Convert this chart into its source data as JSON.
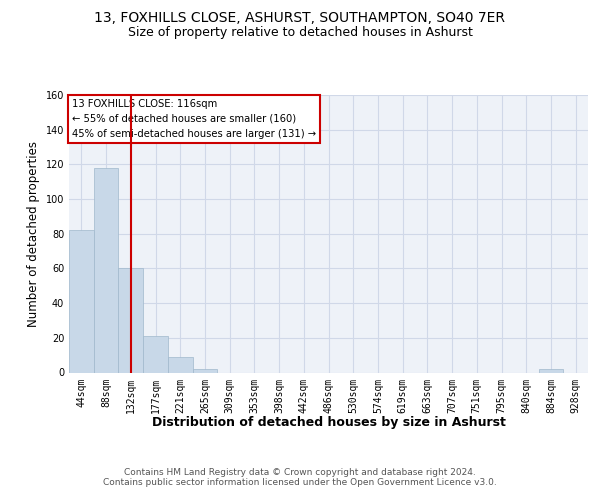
{
  "title1": "13, FOXHILLS CLOSE, ASHURST, SOUTHAMPTON, SO40 7ER",
  "title2": "Size of property relative to detached houses in Ashurst",
  "xlabel": "Distribution of detached houses by size in Ashurst",
  "ylabel": "Number of detached properties",
  "categories": [
    "44sqm",
    "88sqm",
    "132sqm",
    "177sqm",
    "221sqm",
    "265sqm",
    "309sqm",
    "353sqm",
    "398sqm",
    "442sqm",
    "486sqm",
    "530sqm",
    "574sqm",
    "619sqm",
    "663sqm",
    "707sqm",
    "751sqm",
    "795sqm",
    "840sqm",
    "884sqm",
    "928sqm"
  ],
  "values": [
    82,
    118,
    60,
    21,
    9,
    2,
    0,
    0,
    0,
    0,
    0,
    0,
    0,
    0,
    0,
    0,
    0,
    0,
    0,
    2,
    0
  ],
  "bar_color": "#c8d8e8",
  "bar_edgecolor": "#a0b8cc",
  "grid_color": "#d0d8e8",
  "background_color": "#eef2f8",
  "vline_x": 2,
  "vline_color": "#cc0000",
  "annotation_text": "13 FOXHILLS CLOSE: 116sqm\n← 55% of detached houses are smaller (160)\n45% of semi-detached houses are larger (131) →",
  "annotation_box_edgecolor": "#cc0000",
  "annotation_box_facecolor": "#ffffff",
  "ylim": [
    0,
    160
  ],
  "yticks": [
    0,
    20,
    40,
    60,
    80,
    100,
    120,
    140,
    160
  ],
  "footer_text": "Contains HM Land Registry data © Crown copyright and database right 2024.\nContains public sector information licensed under the Open Government Licence v3.0.",
  "title_fontsize": 10,
  "subtitle_fontsize": 9,
  "axis_label_fontsize": 8.5,
  "tick_fontsize": 7,
  "footer_fontsize": 6.5
}
